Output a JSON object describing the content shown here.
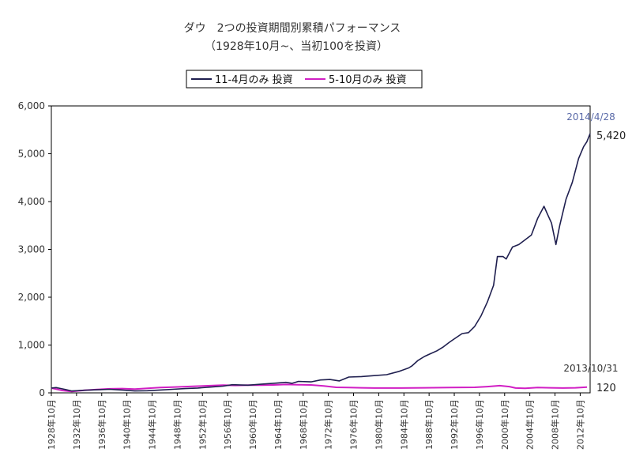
{
  "chart_data": {
    "type": "line",
    "title": "ダウ　2つの投資期間別累積パフォーマンス",
    "subtitle": "（1928年10月~、当初100を投資）",
    "xlabel": "",
    "ylabel": "",
    "ylim": [
      0,
      6000
    ],
    "yticks": [
      "0",
      "1,000",
      "2,000",
      "3,000",
      "4,000",
      "5,000",
      "6,000"
    ],
    "xlim": [
      1928.75,
      2014.33
    ],
    "xtick_labels": [
      "1928年10月",
      "1932年10月",
      "1936年10月",
      "1940年10月",
      "1944年10月",
      "1948年10月",
      "1952年10月",
      "1956年10月",
      "1960年10月",
      "1964年10月",
      "1968年10月",
      "1972年10月",
      "1976年10月",
      "1980年10月",
      "1984年10月",
      "1988年10月",
      "1992年10月",
      "1996年10月",
      "2000年10月",
      "2004年10月",
      "2008年10月",
      "2012年10月"
    ],
    "legend_position": "top",
    "grid": false,
    "series": [
      {
        "name": "11-4月のみ 投資",
        "color": "#1f1f4f",
        "x": [
          1928.75,
          1929.5,
          1930.3,
          1931.0,
          1932.0,
          1932.75,
          1934.0,
          1936.0,
          1938.0,
          1940.0,
          1942.0,
          1944.0,
          1946.0,
          1948.0,
          1950.0,
          1952.0,
          1954.0,
          1956.0,
          1957.5,
          1960.0,
          1962.0,
          1964.0,
          1966.0,
          1967.0,
          1968.0,
          1970.0,
          1971.5,
          1973.0,
          1974.5,
          1976.0,
          1978.0,
          1980.0,
          1982.0,
          1984.0,
          1985.5,
          1986.0,
          1987.0,
          1988.0,
          1989.0,
          1990.0,
          1991.0,
          1992.0,
          1993.0,
          1994.0,
          1995.0,
          1996.0,
          1997.0,
          1998.0,
          1999.0,
          1999.6,
          2000.5,
          2001.0,
          2002.0,
          2003.0,
          2004.0,
          2005.0,
          2006.0,
          2007.0,
          2007.5,
          2008.2,
          2008.9,
          2009.5,
          2010.5,
          2011.5,
          2012.5,
          2013.3,
          2013.8,
          2014.33
        ],
        "values": [
          100,
          110,
          90,
          70,
          40,
          45,
          55,
          65,
          75,
          60,
          40,
          45,
          60,
          75,
          90,
          100,
          120,
          140,
          170,
          160,
          180,
          200,
          220,
          200,
          240,
          230,
          270,
          280,
          250,
          330,
          340,
          360,
          380,
          450,
          520,
          560,
          680,
          760,
          820,
          880,
          960,
          1060,
          1150,
          1240,
          1260,
          1390,
          1610,
          1900,
          2250,
          2850,
          2850,
          2800,
          3050,
          3100,
          3200,
          3300,
          3650,
          3900,
          3750,
          3550,
          3100,
          3500,
          4050,
          4400,
          4900,
          5150,
          5250,
          5420
        ]
      },
      {
        "name": "5-10月のみ 投資",
        "color": "#d11fc4",
        "x": [
          1928.75,
          1930.5,
          1932.0,
          1934.0,
          1936.0,
          1938.0,
          1940.0,
          1942.0,
          1944.0,
          1946.0,
          1948.0,
          1950.0,
          1952.0,
          1954.0,
          1956.0,
          1958.0,
          1960.0,
          1962.0,
          1964.0,
          1966.0,
          1968.0,
          1970.0,
          1972.0,
          1974.0,
          1976.0,
          1978.0,
          1980.0,
          1984.0,
          1988.0,
          1992.0,
          1996.0,
          1998.0,
          2000.0,
          2001.5,
          2002.5,
          2004.0,
          2006.0,
          2008.0,
          2010.0,
          2012.0,
          2013.83
        ],
        "values": [
          100,
          50,
          30,
          55,
          70,
          85,
          90,
          80,
          95,
          110,
          120,
          130,
          140,
          150,
          160,
          155,
          160,
          160,
          165,
          175,
          170,
          165,
          145,
          115,
          110,
          105,
          100,
          100,
          105,
          110,
          115,
          130,
          150,
          130,
          100,
          95,
          110,
          105,
          100,
          105,
          120
        ]
      }
    ],
    "annotations": [
      {
        "date": "2014/4/28",
        "value": "5,420"
      },
      {
        "date": "2013/10/31",
        "value": "120"
      }
    ]
  }
}
